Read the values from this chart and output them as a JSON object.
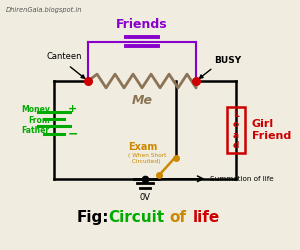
{
  "bg_color": "#f0ede0",
  "title_fig": "Fig: ",
  "title_circuit": "Circuit",
  "title_of": " of ",
  "title_life": "life",
  "title_color_fig": "#000000",
  "title_color_circuit": "#00aa00",
  "title_color_of": "#cc8800",
  "title_color_life": "#cc0000",
  "watermark": "DhirenGala.blogspot.in",
  "circuit_color": "#000000",
  "node_color": "#cc0000",
  "friends_color": "#8800cc",
  "me_color": "#8B7355",
  "exam_color": "#cc8800",
  "battery_color": "#00aa00",
  "load_color": "#cc0000",
  "girlfriend_color": "#cc0000",
  "busy_color": "#000000",
  "canteen_color": "#000000"
}
